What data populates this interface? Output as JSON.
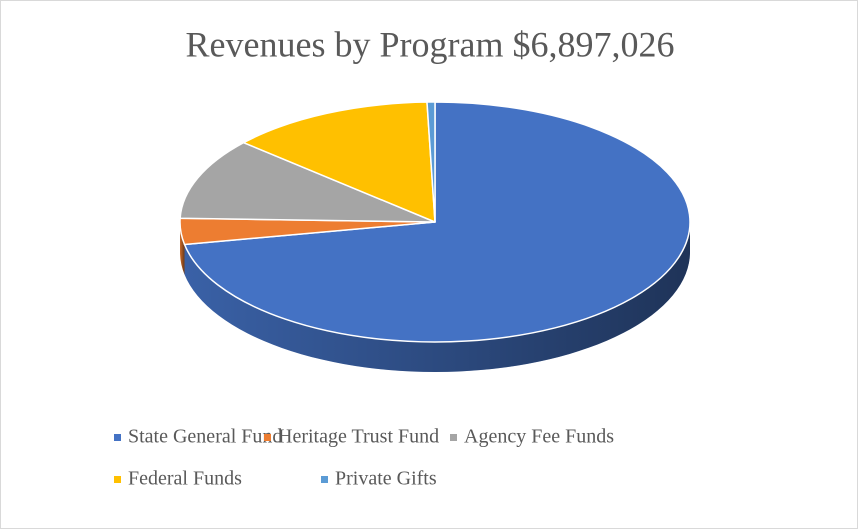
{
  "chart_data": {
    "type": "pie3d",
    "title": "Revenues by Program $6,897,026",
    "categories": [
      "State General Fund",
      "Heritage Trust Fund",
      "Agency Fee Funds",
      "Federal Funds",
      "Private Gifts"
    ],
    "values": [
      72,
      3.5,
      11,
      13,
      0.5
    ],
    "colors": [
      "#4472c4",
      "#ed7d31",
      "#a5a5a5",
      "#ffc000",
      "#5b9bd5"
    ],
    "legend": "bottom"
  }
}
